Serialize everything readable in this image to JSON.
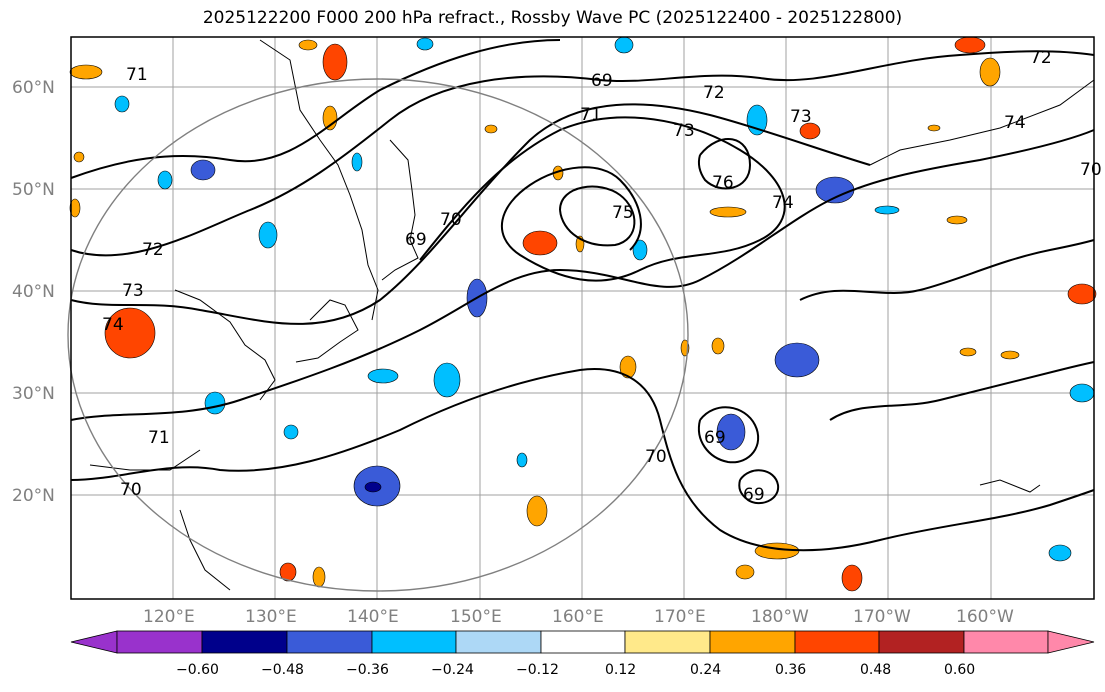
{
  "title": "2025122200 F000 200 hPa refract., Rossby Wave PC (2025122400 - 2025122800)",
  "map": {
    "lat_labels": [
      "60°N",
      "50°N",
      "40°N",
      "30°N",
      "20°N"
    ],
    "lon_labels": [
      "120°E",
      "130°E",
      "140°E",
      "150°E",
      "160°E",
      "170°E",
      "180°W",
      "170°W",
      "160°W"
    ],
    "contour_labels": [
      "71",
      "72",
      "73",
      "74",
      "70",
      "69",
      "75",
      "76",
      "74",
      "73",
      "72",
      "71",
      "70",
      "69",
      "70",
      "71",
      "72",
      "73",
      "74",
      "70",
      "69",
      "69"
    ]
  },
  "colorbar": {
    "ticks": [
      "−0.60",
      "−0.48",
      "−0.36",
      "−0.24",
      "−0.12",
      "0.12",
      "0.24",
      "0.36",
      "0.48",
      "0.60"
    ],
    "colors": [
      "#9932cc",
      "#00008b",
      "#3a5bd8",
      "#00bfff",
      "#add8f6",
      "#ffffff",
      "#ffe98a",
      "#ffa500",
      "#ff4500",
      "#b22222",
      "#ff88aa"
    ]
  },
  "colors": {
    "frame": "#000000",
    "grid": "#a0a0a0",
    "circle": "#808080"
  }
}
